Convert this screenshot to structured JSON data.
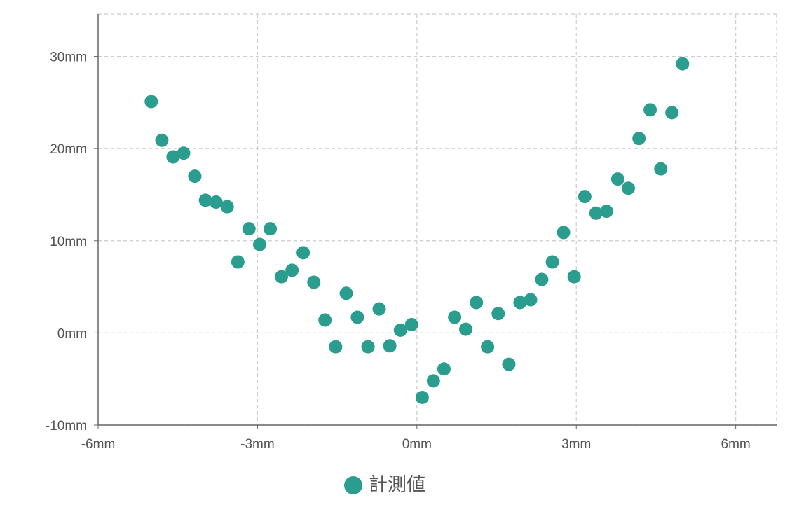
{
  "chart_data": {
    "type": "scatter",
    "series": [
      {
        "name": "計測値",
        "color": "#2a9d8f",
        "x": [
          -5,
          -4.8,
          -4.59,
          -4.39,
          -4.18,
          -3.98,
          -3.78,
          -3.57,
          -3.37,
          -3.16,
          -2.96,
          -2.76,
          -2.55,
          -2.35,
          -2.14,
          -1.94,
          -1.73,
          -1.53,
          -1.33,
          -1.12,
          -0.92,
          -0.71,
          -0.51,
          -0.31,
          -0.1,
          0.1,
          0.31,
          0.51,
          0.71,
          0.92,
          1.12,
          1.33,
          1.53,
          1.73,
          1.94,
          2.14,
          2.35,
          2.55,
          2.76,
          2.96,
          3.16,
          3.37,
          3.57,
          3.78,
          3.98,
          4.18,
          4.39,
          4.59,
          4.8,
          5
        ],
        "values": [
          25.1,
          20.9,
          19.1,
          19.5,
          17.0,
          14.4,
          14.2,
          13.7,
          7.7,
          11.3,
          9.6,
          11.3,
          6.1,
          6.8,
          8.7,
          5.5,
          1.4,
          -1.5,
          4.3,
          1.7,
          -1.5,
          2.6,
          -1.4,
          0.3,
          0.9,
          -7.0,
          -5.2,
          -3.9,
          1.7,
          0.4,
          3.3,
          -1.5,
          2.1,
          -3.4,
          3.3,
          3.6,
          5.8,
          7.7,
          10.9,
          6.1,
          14.8,
          13.0,
          13.2,
          16.7,
          15.7,
          21.1,
          24.2,
          17.8,
          23.9,
          29.2
        ]
      }
    ],
    "xlim": [
      -6,
      6.77
    ],
    "ylim": [
      -10,
      34.6
    ],
    "xticks": [
      {
        "value": -6,
        "label": "-6mm"
      },
      {
        "value": -3,
        "label": "-3mm"
      },
      {
        "value": 0,
        "label": "0mm"
      },
      {
        "value": 3,
        "label": "3mm"
      },
      {
        "value": 6,
        "label": "6mm"
      }
    ],
    "yticks": [
      {
        "value": -10,
        "label": "-10mm"
      },
      {
        "value": 0,
        "label": "0mm"
      },
      {
        "value": 10,
        "label": "10mm"
      },
      {
        "value": 20,
        "label": "20mm"
      },
      {
        "value": 30,
        "label": "30mm"
      }
    ],
    "grid": true
  }
}
